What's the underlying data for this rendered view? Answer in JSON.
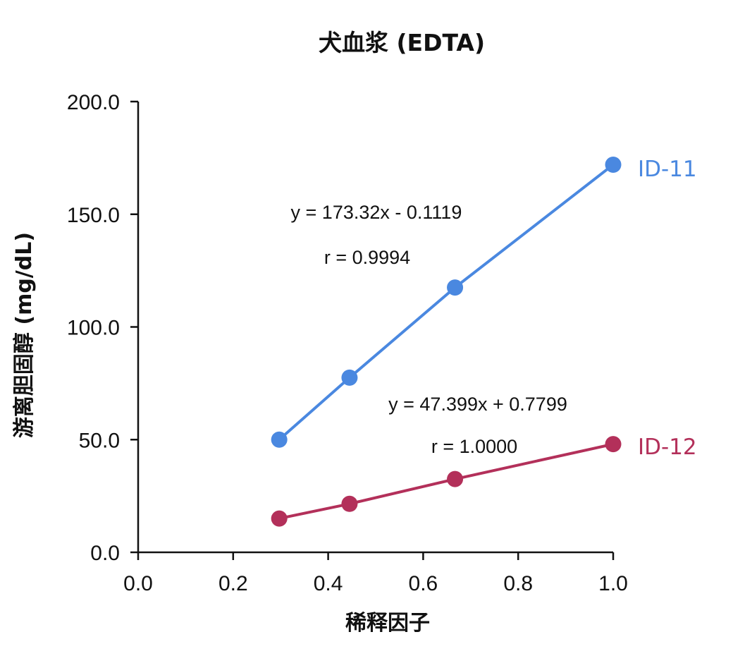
{
  "colors": {
    "id11": "#4a88e0",
    "id12": "#b3305a",
    "axis": "#111111"
  },
  "chart_data": {
    "type": "scatter",
    "title": "犬血浆 (EDTA)",
    "xlabel": "稀释因子",
    "ylabel": "游离胆固醇 (mg/dL)",
    "xlim": [
      0.0,
      1.0
    ],
    "ylim": [
      0.0,
      200.0
    ],
    "xticks": [
      "0.0",
      "0.2",
      "0.4",
      "0.6",
      "0.8",
      "1.0"
    ],
    "yticks": [
      "0.0",
      "50.0",
      "100.0",
      "150.0",
      "200.0"
    ],
    "grid": false,
    "series": [
      {
        "name": "ID-11",
        "color": "#4a88e0",
        "x": [
          0.297,
          0.445,
          0.667,
          1.0
        ],
        "y": [
          50.0,
          77.5,
          117.5,
          172.0
        ],
        "equation": "y = 173.32x - 0.1119",
        "r": "r = 0.9994"
      },
      {
        "name": "ID-12",
        "color": "#b3305a",
        "x": [
          0.297,
          0.445,
          0.667,
          1.0
        ],
        "y": [
          15.0,
          21.5,
          32.5,
          48.0
        ],
        "equation": "y = 47.399x + 0.7799",
        "r": "r = 1.0000"
      }
    ]
  }
}
